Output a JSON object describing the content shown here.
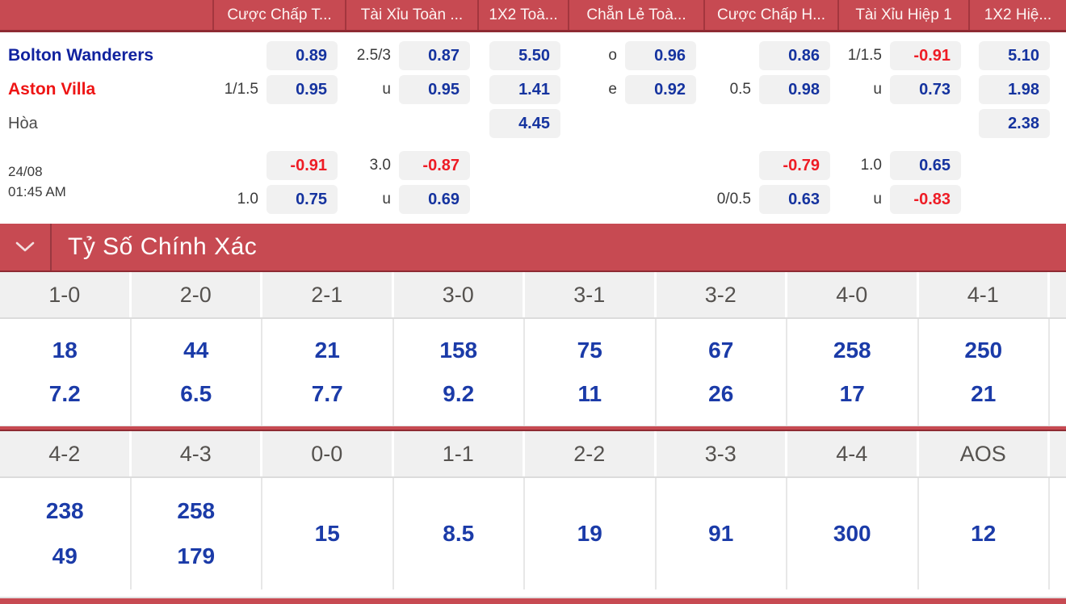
{
  "colors": {
    "header_red": "#C74A52",
    "dark_red": "#8E2B33",
    "odds_blue": "#15339F",
    "negative_red": "#EE1C25",
    "home_team_blue": "#10229F",
    "away_team_red": "#EE1414",
    "pill_bg": "#F1F1F1"
  },
  "odds_table": {
    "column_headers": [
      "Cược Chấp T...",
      "Tài Xỉu Toàn ...",
      "1X2 Toà...",
      "Chẵn Lẻ Toà...",
      "Cược Chấp H...",
      "Tài Xỉu Hiệp 1",
      "1X2 Hiệ..."
    ],
    "rows": [
      {
        "label": "Bolton Wanderers",
        "label_style": "home",
        "cells": [
          {
            "hcp": "",
            "odd": "0.89"
          },
          {
            "hcp": "2.5/3",
            "odd": "0.87"
          },
          {
            "hcp": "",
            "odd": "5.50"
          },
          {
            "hcp": "o",
            "odd": "0.96"
          },
          {
            "hcp": "",
            "odd": "0.86"
          },
          {
            "hcp": "1/1.5",
            "odd": "-0.91"
          },
          {
            "hcp": "",
            "odd": "5.10"
          }
        ]
      },
      {
        "label": "Aston Villa",
        "label_style": "away",
        "cells": [
          {
            "hcp": "1/1.5",
            "odd": "0.95"
          },
          {
            "hcp": "u",
            "odd": "0.95"
          },
          {
            "hcp": "",
            "odd": "1.41"
          },
          {
            "hcp": "e",
            "odd": "0.92"
          },
          {
            "hcp": "0.5",
            "odd": "0.98"
          },
          {
            "hcp": "u",
            "odd": "0.73"
          },
          {
            "hcp": "",
            "odd": "1.98"
          }
        ]
      },
      {
        "label": "Hòa",
        "label_style": "draw",
        "gap_after": true,
        "cells": [
          null,
          null,
          {
            "hcp": "",
            "odd": "4.45"
          },
          null,
          null,
          null,
          {
            "hcp": "",
            "odd": "2.38"
          }
        ]
      },
      {
        "label": "",
        "label_style": "",
        "cells": [
          {
            "hcp": "",
            "odd": "-0.91"
          },
          {
            "hcp": "3.0",
            "odd": "-0.87"
          },
          null,
          null,
          {
            "hcp": "",
            "odd": "-0.79"
          },
          {
            "hcp": "1.0",
            "odd": "0.65"
          },
          null
        ]
      },
      {
        "label": "",
        "label_style": "",
        "cells": [
          {
            "hcp": "1.0",
            "odd": "0.75"
          },
          {
            "hcp": "u",
            "odd": "0.69"
          },
          null,
          null,
          {
            "hcp": "0/0.5",
            "odd": "0.63"
          },
          {
            "hcp": "u",
            "odd": "-0.83"
          },
          null
        ]
      }
    ],
    "datetime": {
      "date": "24/08",
      "time": "01:45 AM"
    }
  },
  "score_section": {
    "title": "Tỷ Số Chính Xác",
    "chevron_icon": "chevron-down"
  },
  "score_grid": {
    "groups": [
      {
        "columns": [
          {
            "score": "1-0",
            "values": [
              "18",
              "7.2"
            ]
          },
          {
            "score": "2-0",
            "values": [
              "44",
              "6.5"
            ]
          },
          {
            "score": "2-1",
            "values": [
              "21",
              "7.7"
            ]
          },
          {
            "score": "3-0",
            "values": [
              "158",
              "9.2"
            ]
          },
          {
            "score": "3-1",
            "values": [
              "75",
              "11"
            ]
          },
          {
            "score": "3-2",
            "values": [
              "67",
              "26"
            ]
          },
          {
            "score": "4-0",
            "values": [
              "258",
              "17"
            ]
          },
          {
            "score": "4-1",
            "values": [
              "250",
              "21"
            ]
          }
        ]
      },
      {
        "columns": [
          {
            "score": "4-2",
            "values": [
              "238",
              "49"
            ]
          },
          {
            "score": "4-3",
            "values": [
              "258",
              "179"
            ]
          },
          {
            "score": "0-0",
            "values": [
              "15"
            ]
          },
          {
            "score": "1-1",
            "values": [
              "8.5"
            ]
          },
          {
            "score": "2-2",
            "values": [
              "19"
            ]
          },
          {
            "score": "3-3",
            "values": [
              "91"
            ]
          },
          {
            "score": "4-4",
            "values": [
              "300"
            ]
          },
          {
            "score": "AOS",
            "values": [
              "12"
            ]
          }
        ]
      }
    ]
  }
}
